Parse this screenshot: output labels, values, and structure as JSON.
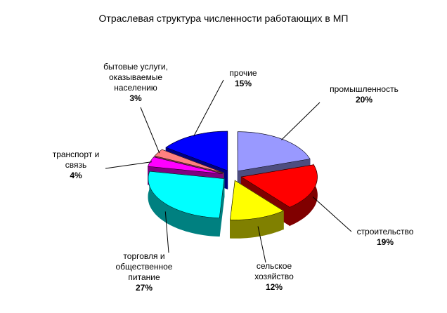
{
  "chart_data": {
    "type": "pie",
    "title": "Отраслевая структура численности работающих в МП",
    "categories": [
      "промышленность",
      "строительство",
      "сельское хозяйство",
      "торговля и общественное питание",
      "транспорт и связь",
      "бытовые услуги, оказываемые населению",
      "прочие"
    ],
    "values": [
      20,
      19,
      12,
      27,
      4,
      3,
      15
    ],
    "value_labels": [
      "20%",
      "19%",
      "12%",
      "27%",
      "4%",
      "3%",
      "15%"
    ],
    "colors": [
      "#9999ff",
      "#ff0000",
      "#ffff00",
      "#00ffff",
      "#ff00ff",
      "#ff8080",
      "#0000ff"
    ]
  }
}
